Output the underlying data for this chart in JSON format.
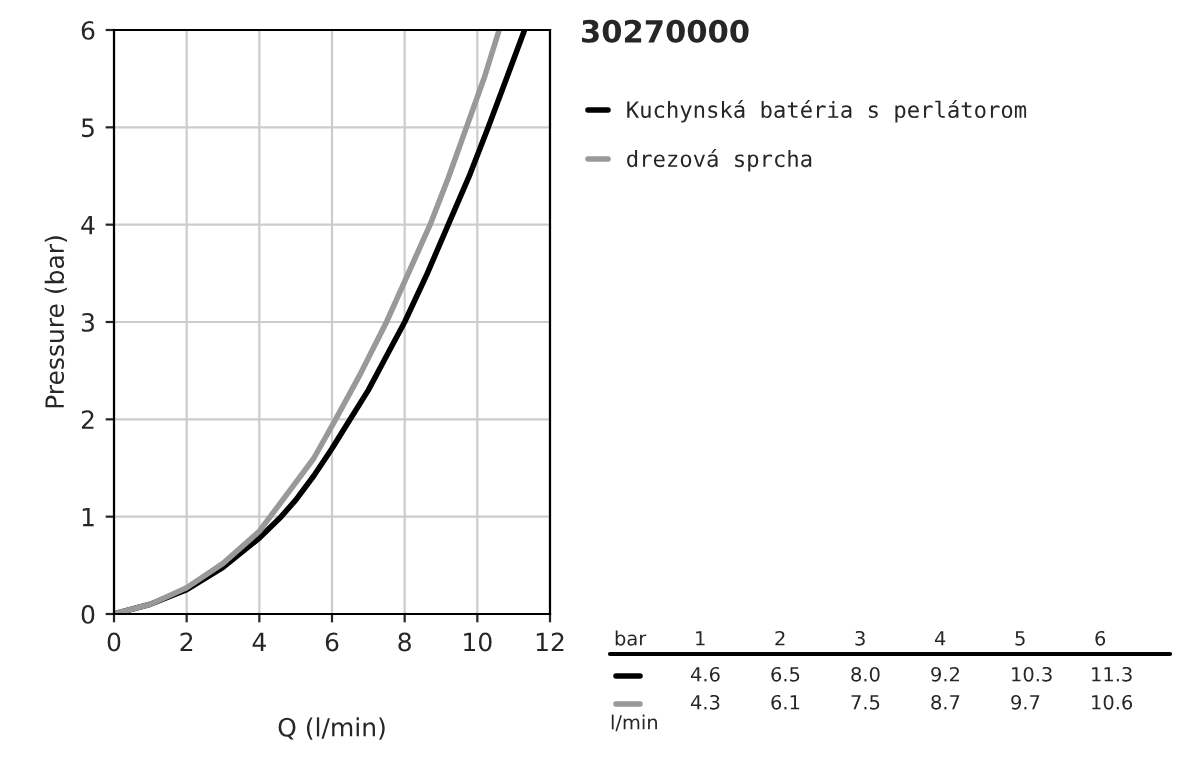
{
  "chart_data": {
    "type": "line",
    "title": "30270000",
    "xlabel": "Q (l/min)",
    "ylabel": "Pressure (bar)",
    "xlim": [
      0,
      12
    ],
    "xticks": [
      0,
      2,
      4,
      6,
      8,
      10,
      12
    ],
    "ylim": [
      0,
      6
    ],
    "yticks": [
      0,
      1,
      2,
      3,
      4,
      5,
      6
    ],
    "grid": true,
    "legend": "top right",
    "series": [
      {
        "name": "Kuchynská batéria s perlátorom",
        "color": "#000000",
        "x": [
          0,
          1,
          2,
          3,
          4,
          4.6,
          5,
          5.5,
          6,
          6.5,
          7,
          7.5,
          8,
          8.6,
          9.2,
          9.8,
          10.3,
          10.8,
          11.3
        ],
        "values": [
          0,
          0.1,
          0.25,
          0.48,
          0.78,
          1,
          1.17,
          1.42,
          1.7,
          2,
          2.3,
          2.65,
          3,
          3.48,
          4,
          4.52,
          5,
          5.5,
          6
        ]
      },
      {
        "name": "drezová sprcha",
        "color": "#999999",
        "x": [
          0,
          1,
          2,
          3,
          4,
          4.3,
          4.8,
          5.5,
          6.1,
          6.8,
          7.5,
          8.1,
          8.7,
          9.2,
          9.7,
          10.2,
          10.6
        ],
        "values": [
          0,
          0.1,
          0.27,
          0.52,
          0.85,
          1,
          1.25,
          1.6,
          2,
          2.48,
          3,
          3.5,
          4,
          4.48,
          5,
          5.52,
          6
        ]
      }
    ],
    "annotations": [
      "bar",
      "1",
      "2",
      "3",
      "4",
      "5",
      "6",
      "4.6",
      "6.5",
      "8.0",
      "9.2",
      "10.3",
      "11.3",
      "4.3",
      "6.1",
      "7.5",
      "8.7",
      "9.7",
      "10.6",
      "l/min"
    ]
  }
}
